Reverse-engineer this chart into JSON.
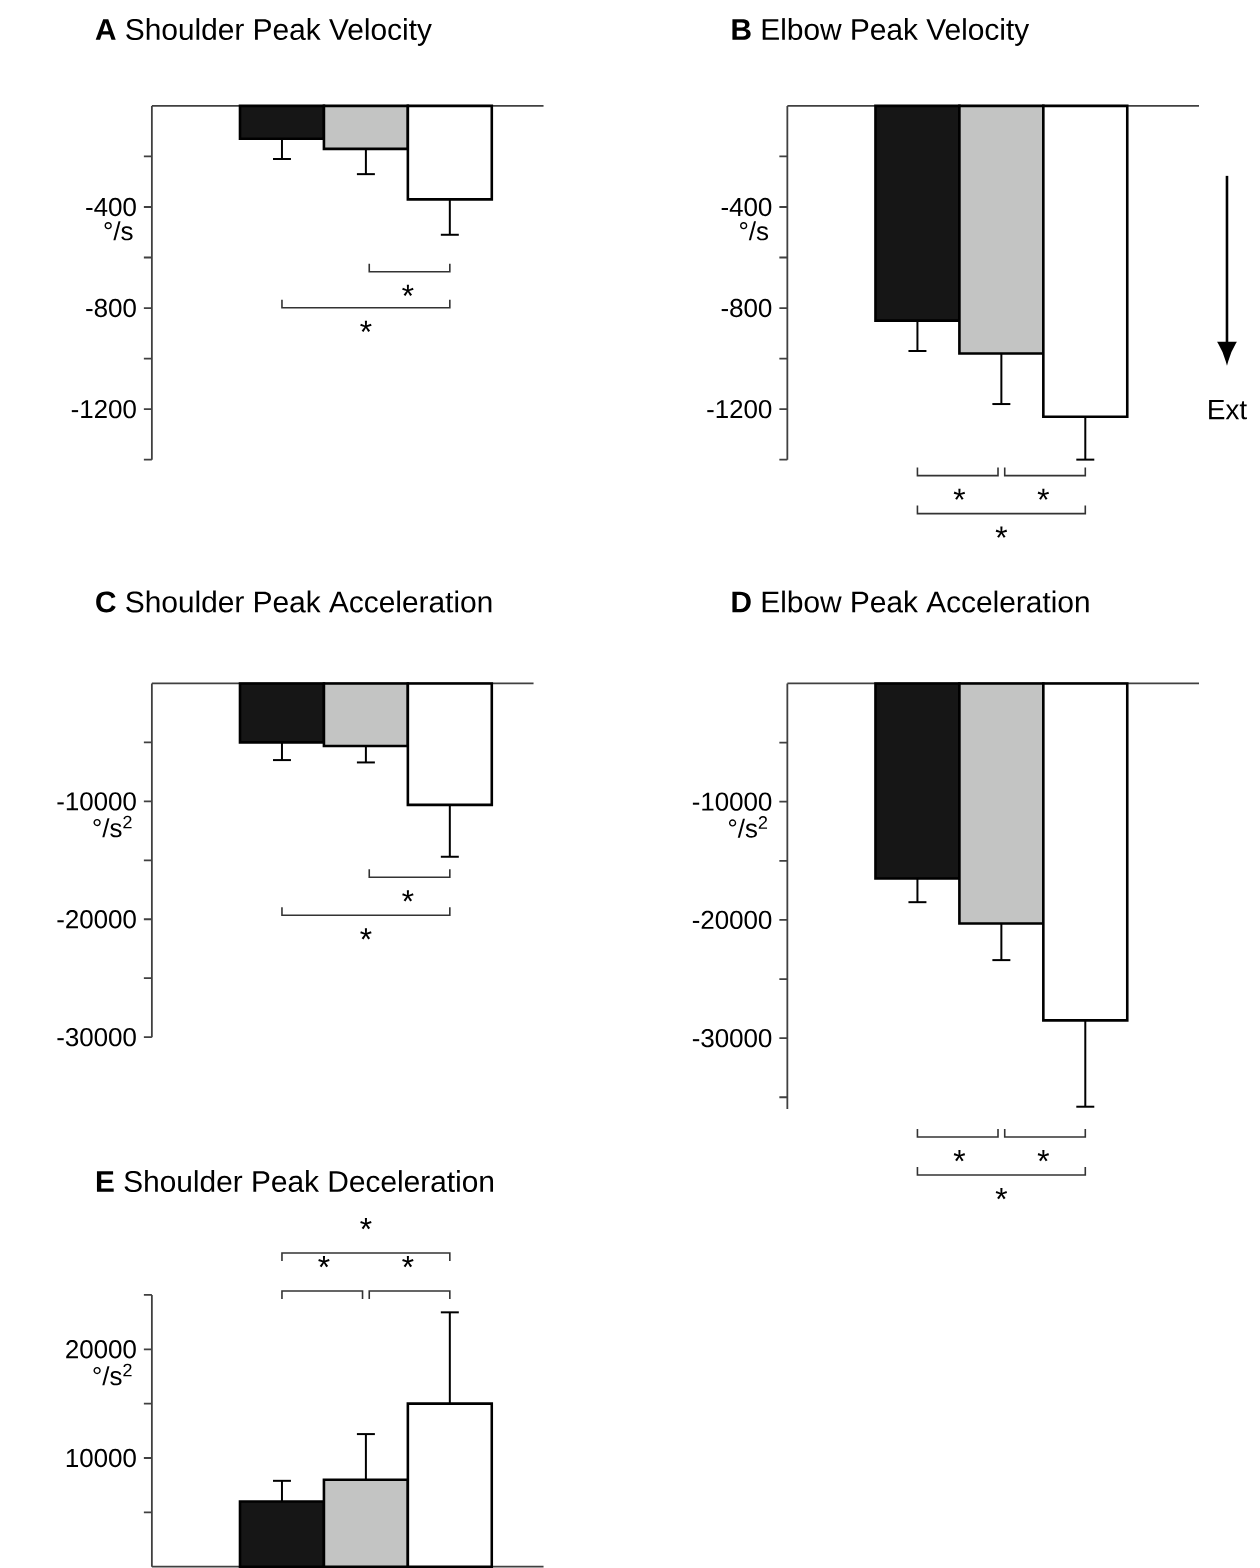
{
  "chart_data": [
    {
      "type": "bar",
      "title": "**A**  Shoulder Peak Velocity",
      "ylabel": "°/s",
      "categories": [
        null,
        null,
        null
      ],
      "values": [
        -130,
        -170,
        -370
      ],
      "colors": [
        "#161616",
        "#c3c4c3",
        "#ffffff"
      ],
      "errors": [
        [
          -210,
          -130
        ],
        [
          -270,
          -170
        ],
        [
          -510,
          -370
        ]
      ],
      "ylim": [
        -1400,
        0
      ],
      "yticks": [
        {
          "value": -200,
          "label": null
        },
        -400,
        {
          "value": -600,
          "label": null
        },
        -800,
        {
          "value": -1000,
          "label": null
        },
        -1200,
        {
          "value": -1400,
          "label": null
        }
      ],
      "annotations": [
        "*",
        "*"
      ]
    },
    {
      "type": "bar",
      "title": "**B**  Elbow Peak Velocity",
      "ylabel": "°/s",
      "categories": [
        null,
        null,
        null
      ],
      "values": [
        -850,
        -980,
        -1230
      ],
      "colors": [
        "#161616",
        "#c3c4c3",
        "#ffffff"
      ],
      "errors": [
        [
          -970,
          -850
        ],
        [
          -1180,
          -980
        ],
        [
          -1400,
          -1230
        ]
      ],
      "ylim": [
        -1400,
        0
      ],
      "yticks": [
        {
          "value": -200,
          "label": null
        },
        -400,
        {
          "value": -600,
          "label": null
        },
        -800,
        {
          "value": -1000,
          "label": null
        },
        -1200,
        {
          "value": -1400,
          "label": null
        }
      ],
      "annotations": [
        "*",
        "*",
        "*",
        "Ext"
      ]
    },
    {
      "type": "bar",
      "title": "**C**  Shoulder Peak Acceleration",
      "ylabel": "°/s$^{2}$",
      "categories": [
        null,
        null,
        null
      ],
      "values": [
        -5000,
        -5300,
        -10300
      ],
      "colors": [
        "#161616",
        "#c3c4c3",
        "#ffffff"
      ],
      "errors": [
        [
          -6500,
          -5000
        ],
        [
          -6700,
          -5300
        ],
        [
          -14700,
          -10300
        ]
      ],
      "ylim": [
        -30000,
        0
      ],
      "yticks": [
        {
          "value": -5000,
          "label": null
        },
        -10000,
        {
          "value": -15000,
          "label": null
        },
        -20000,
        {
          "value": -25000,
          "label": null
        },
        -30000
      ],
      "annotations": [
        "*",
        "*"
      ]
    },
    {
      "type": "bar",
      "title": "**D**  Elbow Peak Acceleration",
      "ylabel": "°/s$^{2}$",
      "categories": [
        null,
        null,
        null
      ],
      "values": [
        -16500,
        -20300,
        -28500
      ],
      "colors": [
        "#161616",
        "#c3c4c3",
        "#ffffff"
      ],
      "errors": [
        [
          -18500,
          -16500
        ],
        [
          -23400,
          -20300
        ],
        [
          -35800,
          -28500
        ]
      ],
      "ylim": [
        -36000,
        0
      ],
      "yticks": [
        {
          "value": -5000,
          "label": null
        },
        -10000,
        {
          "value": -15000,
          "label": null
        },
        -20000,
        {
          "value": -25000,
          "label": null
        },
        -30000,
        {
          "value": -35000,
          "label": null
        }
      ],
      "annotations": [
        "*",
        "*",
        "*"
      ]
    },
    {
      "type": "bar",
      "title": "**E**  Shoulder Peak Deceleration",
      "ylabel": "°/s$^{2}$",
      "categories": [
        null,
        null,
        null
      ],
      "values": [
        6000,
        8000,
        15000
      ],
      "colors": [
        "#161616",
        "#c3c4c3",
        "#ffffff"
      ],
      "errors": [
        [
          6000,
          7900
        ],
        [
          8000,
          12200
        ],
        [
          15000,
          23400
        ]
      ],
      "ylim": [
        0,
        25000
      ],
      "yticks": [
        {
          "value": 5000,
          "label": null
        },
        10000,
        {
          "value": 15000,
          "label": null
        },
        20000,
        {
          "value": 25000,
          "label": null
        }
      ],
      "annotations": [
        "*",
        "*",
        "*"
      ]
    }
  ]
}
